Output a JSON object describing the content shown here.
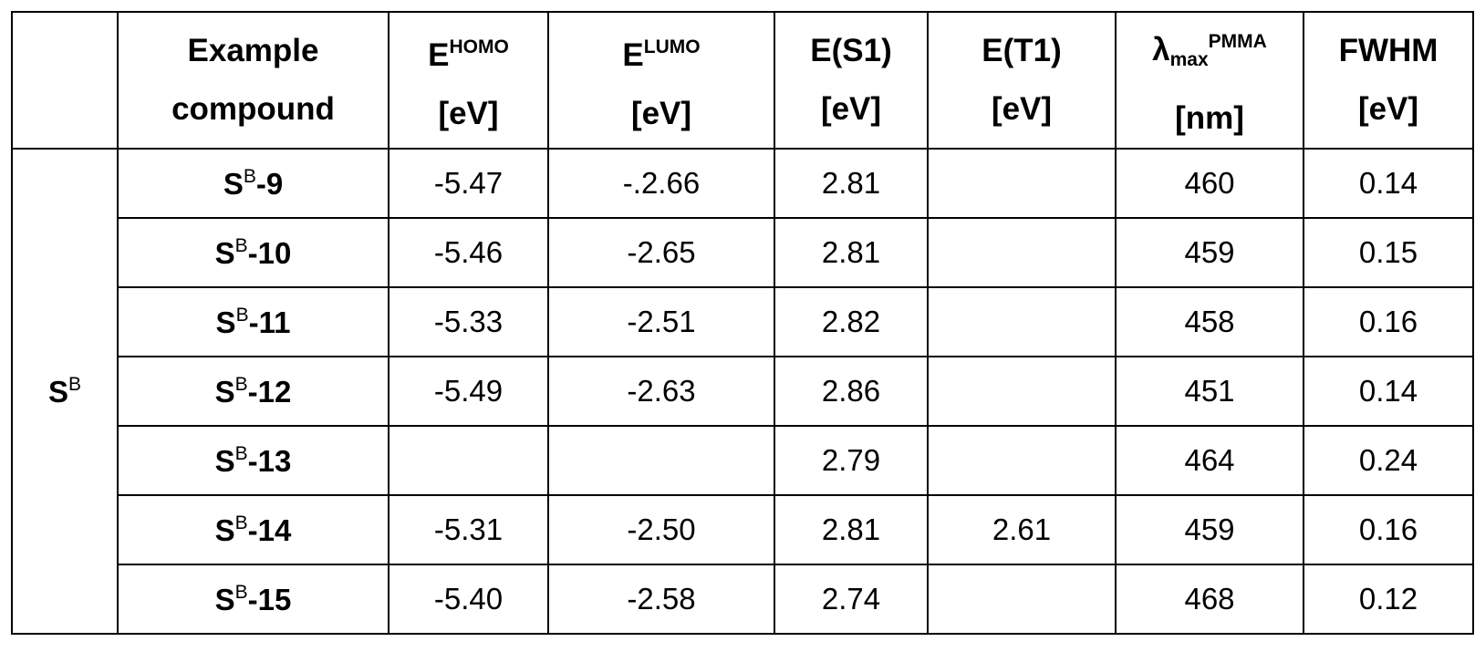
{
  "table": {
    "header": [
      null,
      {
        "line1": "Example",
        "line2": "compound"
      },
      {
        "main": "E",
        "sup": "HOMO",
        "unit": "[eV]"
      },
      {
        "main": "E",
        "sup": "LUMO",
        "unit": "[eV]"
      },
      {
        "main": "E(S1)",
        "unit": "[eV]"
      },
      {
        "main": "E(T1)",
        "unit": "[eV]"
      },
      {
        "main": "λ",
        "sub": "max",
        "sup": "PMMA",
        "unit": "[nm]"
      },
      {
        "main": "FWHM",
        "unit": "[eV]"
      }
    ],
    "group": {
      "main": "S",
      "sup": "B"
    },
    "rows": [
      [
        {
          "main": "S",
          "sup": "B",
          "suffix": "-9"
        },
        "-5.47",
        "-.2.66",
        "2.81",
        null,
        "460",
        "0.14"
      ],
      [
        {
          "main": "S",
          "sup": "B",
          "suffix": "-10"
        },
        "-5.46",
        "-2.65",
        "2.81",
        null,
        "459",
        "0.15"
      ],
      [
        {
          "main": "S",
          "sup": "B",
          "suffix": "-11"
        },
        "-5.33",
        "-2.51",
        "2.82",
        null,
        "458",
        "0.16"
      ],
      [
        {
          "main": "S",
          "sup": "B",
          "suffix": "-12"
        },
        "-5.49",
        "-2.63",
        "2.86",
        null,
        "451",
        "0.14"
      ],
      [
        {
          "main": "S",
          "sup": "B",
          "suffix": "-13"
        },
        null,
        null,
        "2.79",
        null,
        "464",
        "0.24"
      ],
      [
        {
          "main": "S",
          "sup": "B",
          "suffix": "-14"
        },
        "-5.31",
        "-2.50",
        "2.81",
        "2.61",
        "459",
        "0.16"
      ],
      [
        {
          "main": "S",
          "sup": "B",
          "suffix": "-15"
        },
        "-5.40",
        "-2.58",
        "2.74",
        null,
        "468",
        "0.12"
      ]
    ]
  }
}
